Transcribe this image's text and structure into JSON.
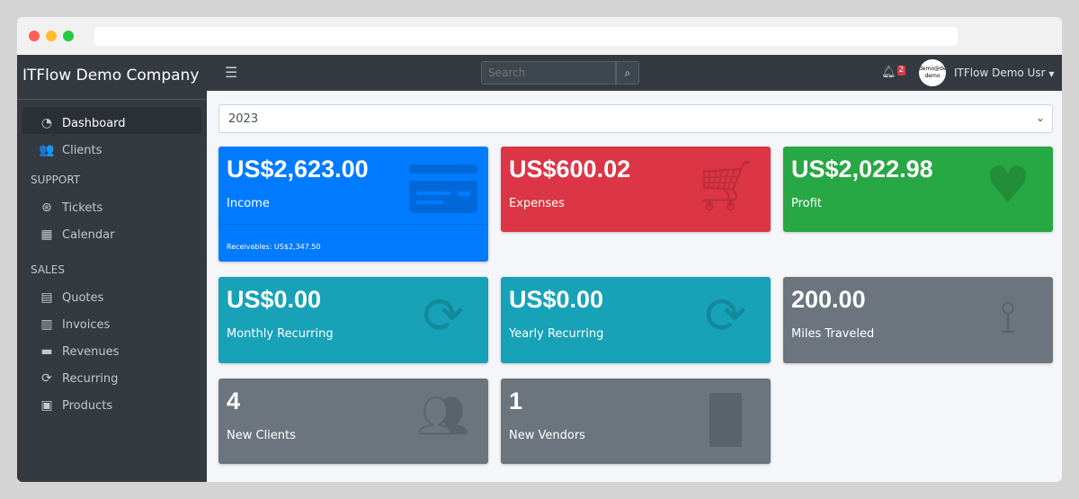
{
  "sidebar": {
    "brand": "ITFlow Demo Company",
    "items": [
      {
        "label": "Dashboard",
        "icon": "tachometer-icon"
      },
      {
        "label": "Clients",
        "icon": "users-icon"
      }
    ],
    "support_header": "SUPPORT",
    "support": [
      {
        "label": "Tickets",
        "icon": "life-ring-icon"
      },
      {
        "label": "Calendar",
        "icon": "calendar-icon"
      }
    ],
    "sales_header": "SALES",
    "sales": [
      {
        "label": "Quotes",
        "icon": "file-icon"
      },
      {
        "label": "Invoices",
        "icon": "invoice-icon"
      },
      {
        "label": "Revenues",
        "icon": "credit-card-icon"
      },
      {
        "label": "Recurring",
        "icon": "sync-icon"
      },
      {
        "label": "Products",
        "icon": "box-icon"
      }
    ]
  },
  "topnav": {
    "search_placeholder": "Search",
    "notifications": "2",
    "avatar_text": "demo@demo demo",
    "user": "ITFlow Demo Usr"
  },
  "year": "2023",
  "cards": [
    {
      "value": "US$2,623.00",
      "label": "Income",
      "footer": "Receivables: US$2,347.50",
      "color": "#007bff"
    },
    {
      "value": "US$600.02",
      "label": "Expenses",
      "color": "#dc3545"
    },
    {
      "value": "US$2,022.98",
      "label": "Profit",
      "color": "#28a745"
    },
    {
      "value": "US$0.00",
      "label": "Monthly Recurring",
      "color": "#17a2b8"
    },
    {
      "value": "US$0.00",
      "label": "Yearly Recurring",
      "color": "#17a2b8"
    },
    {
      "value": "200.00",
      "label": "Miles Traveled",
      "color": "#6c757d"
    },
    {
      "value": "4",
      "label": "New Clients",
      "color": "#6c757d"
    },
    {
      "value": "1",
      "label": "New Vendors",
      "color": "#6c757d"
    }
  ]
}
